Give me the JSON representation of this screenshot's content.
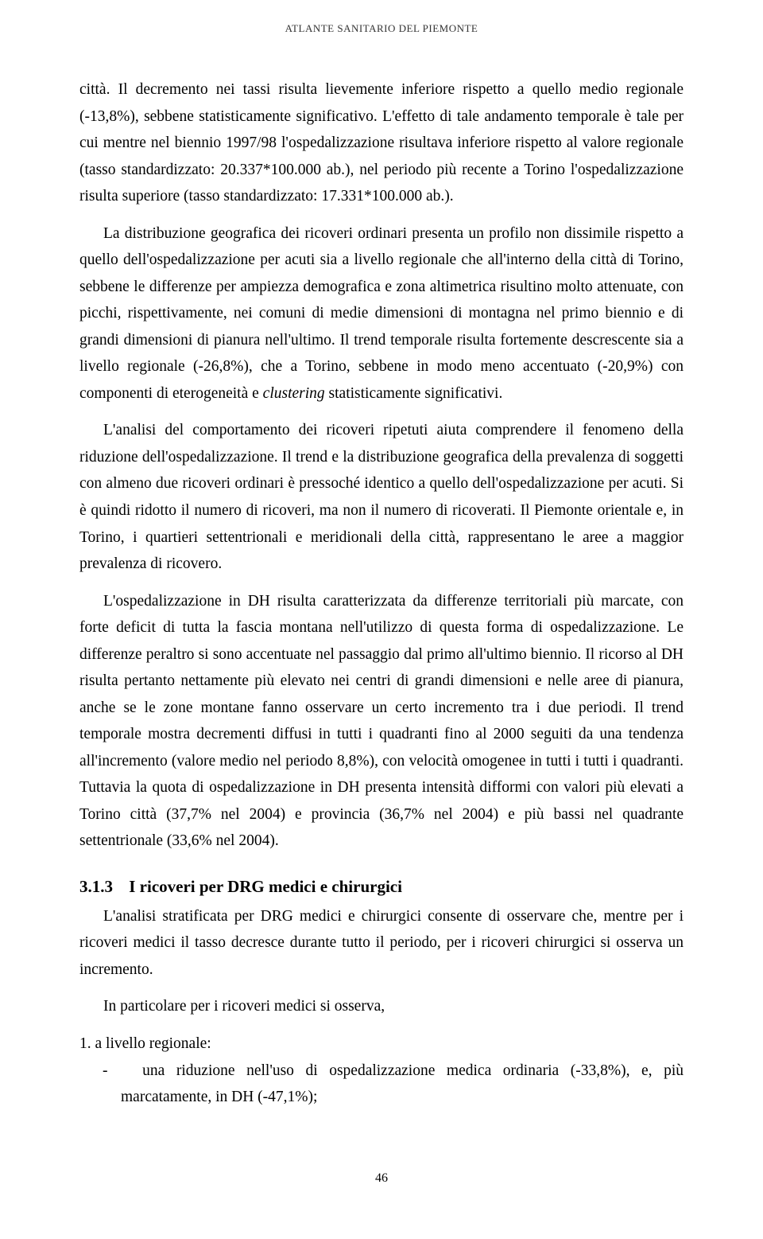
{
  "header": "ATLANTE SANITARIO DEL PIEMONTE",
  "paragraph1": "città. Il decremento nei tassi risulta lievemente inferiore rispetto a quello medio regionale (-13,8%), sebbene statisticamente significativo. L'effetto di tale andamento temporale è tale per cui mentre nel biennio 1997/98 l'ospedalizzazione risultava inferiore rispetto al valore regionale (tasso standardizzato: 20.337*100.000 ab.), nel periodo più recente a Torino l'ospedalizzazione risulta superiore (tasso standardizzato: 17.331*100.000 ab.).",
  "paragraph2_part1": "La distribuzione geografica dei ricoveri ordinari presenta un profilo non dissimile rispetto a quello dell'ospedalizzazione per acuti sia a livello regionale che all'interno della città di Torino, sebbene le differenze per ampiezza demografica e zona altimetrica risultino molto attenuate, con picchi, rispettivamente, nei comuni di medie dimensioni di montagna nel primo biennio e di grandi dimensioni di pianura nell'ultimo. Il trend temporale risulta fortemente descrescente sia a livello regionale (-26,8%), che a Torino, sebbene in modo meno accentuato (-20,9%) con componenti di eterogeneità e ",
  "paragraph2_italic": "clustering",
  "paragraph2_part2": " statisticamente significativi.",
  "paragraph3": "L'analisi del comportamento dei ricoveri ripetuti aiuta comprendere il fenomeno della riduzione dell'ospedalizzazione. Il trend e la distribuzione geografica della prevalenza di soggetti con almeno due ricoveri ordinari è pressoché identico a quello dell'ospedalizzazione per acuti. Si è quindi ridotto il numero di ricoveri, ma non il numero di ricoverati. Il Piemonte orientale e, in Torino, i quartieri settentrionali e meridionali della città, rappresentano le aree a maggior prevalenza di ricovero.",
  "paragraph4": "L'ospedalizzazione in DH risulta caratterizzata da differenze territoriali più marcate, con forte deficit di tutta la fascia montana nell'utilizzo di questa forma di ospedalizzazione. Le differenze peraltro si sono accentuate nel passaggio dal primo all'ultimo biennio. Il ricorso al DH risulta pertanto nettamente più elevato nei centri di grandi dimensioni e nelle aree di pianura, anche se le zone montane fanno osservare un certo incremento tra i due periodi. Il trend temporale mostra decrementi diffusi in tutti i quadranti fino al 2000 seguiti da una tendenza all'incremento (valore medio nel periodo 8,8%), con velocità omogenee in tutti i tutti i quadranti. Tuttavia la quota di ospedalizzazione in DH presenta intensità difformi con valori più elevati a Torino città (37,7% nel 2004) e provincia (36,7% nel 2004) e più bassi nel quadrante settentrionale (33,6% nel 2004).",
  "section": {
    "number": "3.1.3",
    "title": "I ricoveri per DRG medici e chirurgici"
  },
  "paragraph5": "L'analisi stratificata per DRG medici e chirurgici consente di osservare che, mentre per i ricoveri medici il tasso decresce durante tutto il periodo, per i ricoveri chirurgici si osserva un incremento.",
  "paragraph6": "In particolare per i ricoveri medici si osserva,",
  "list1_num": "1.",
  "list1_text": "a livello regionale:",
  "list1_dash_prefix": "-",
  "list1_dash_text": "una riduzione nell'uso di ospedalizzazione medica ordinaria (-33,8%), e, più marcatamente, in DH (-47,1%);",
  "page_number": "46"
}
